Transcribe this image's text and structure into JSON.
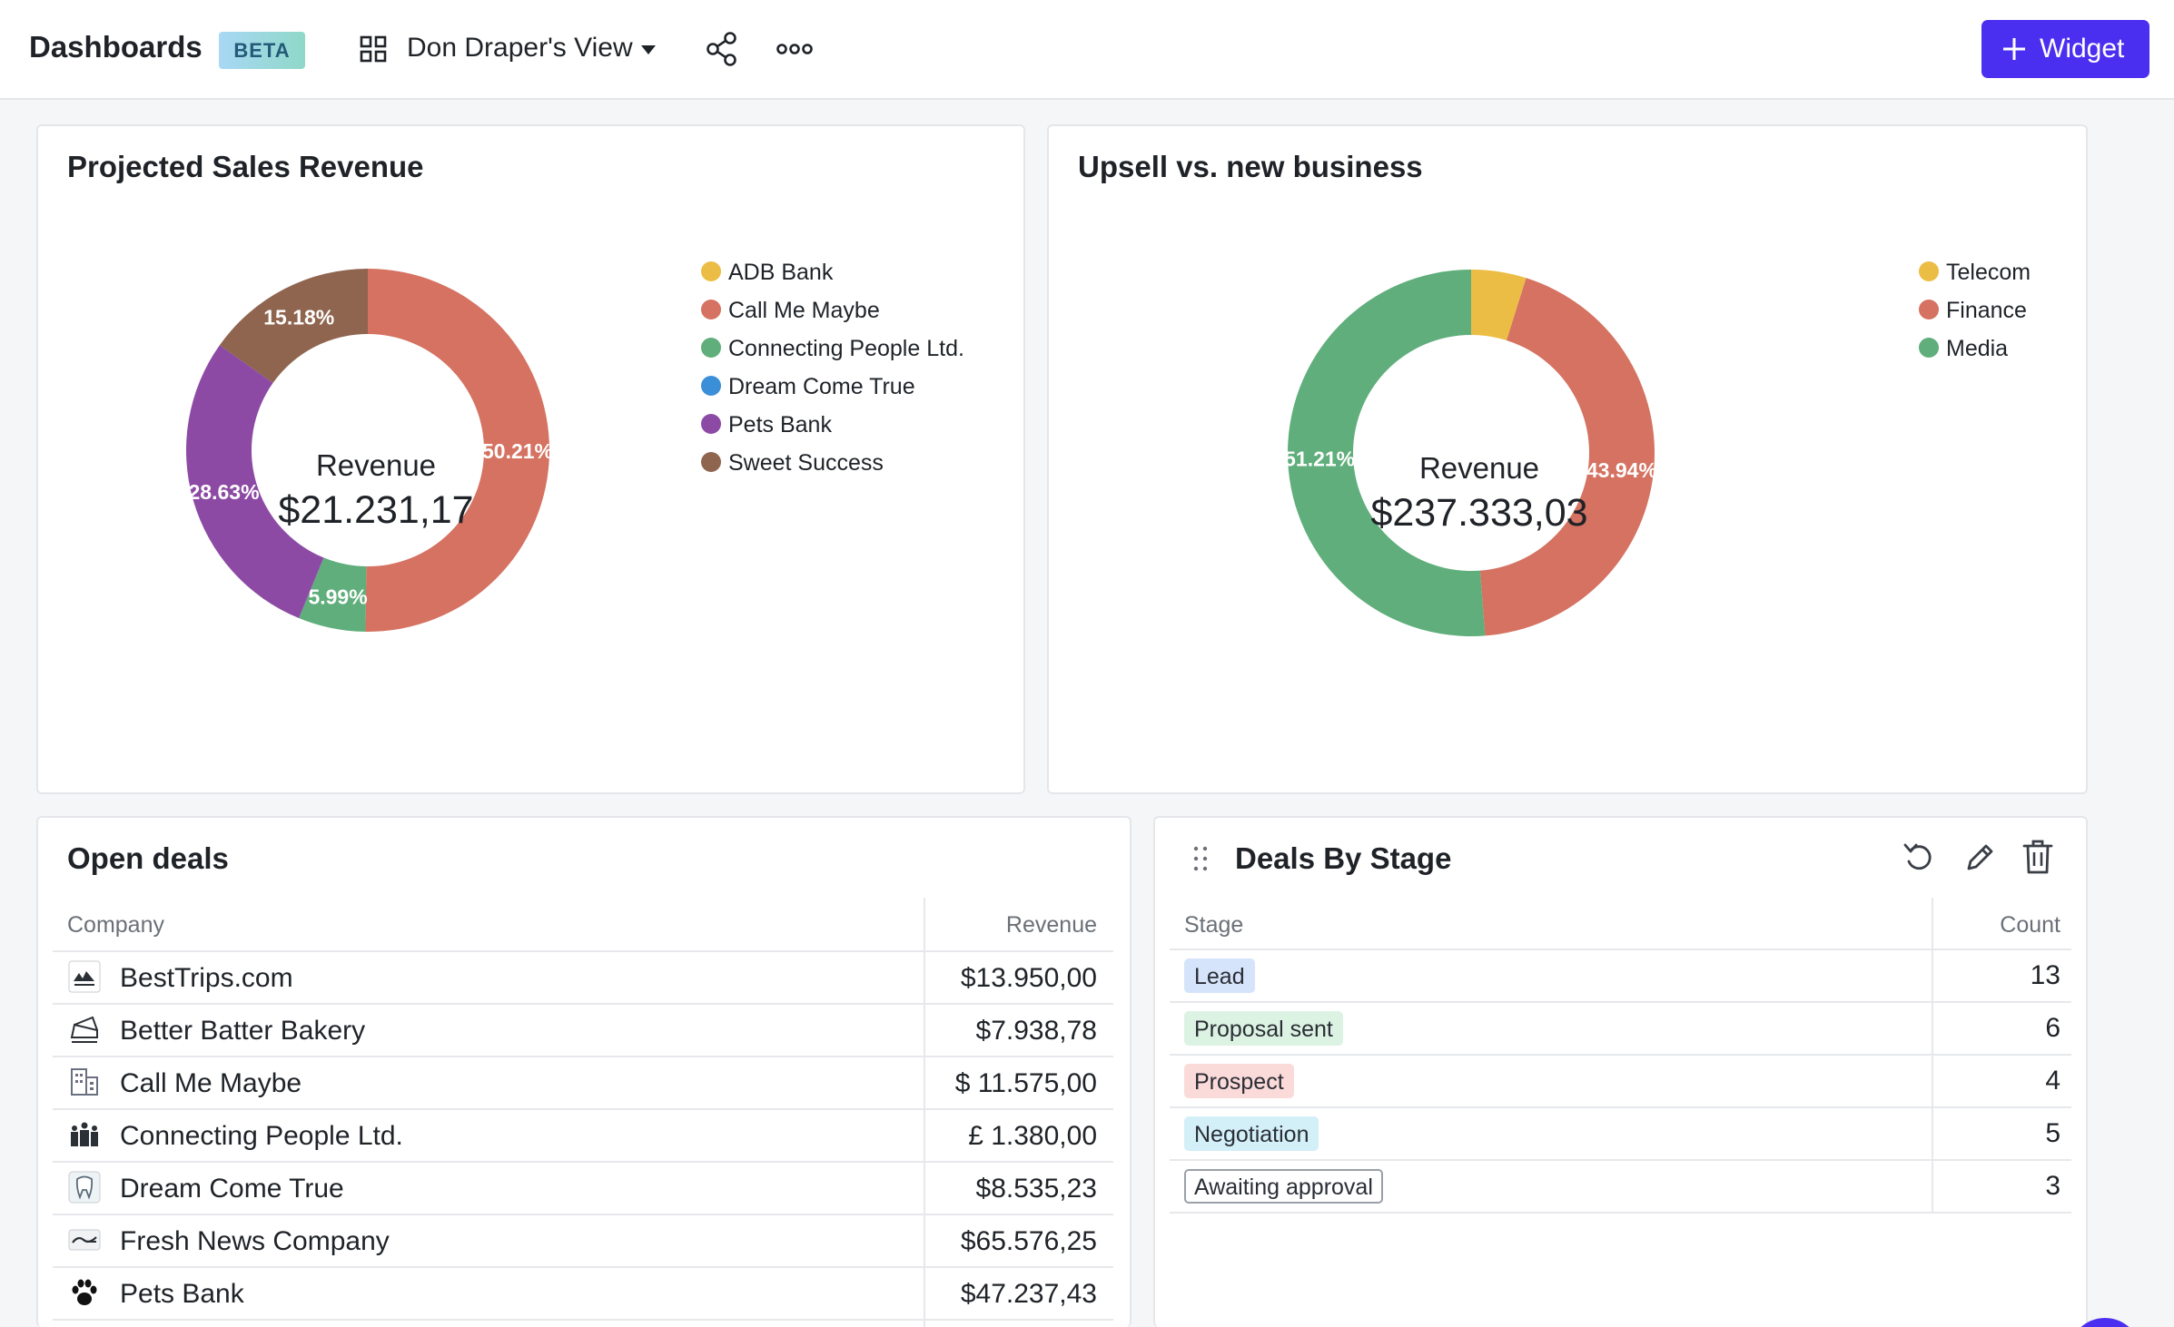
{
  "header": {
    "title": "Dashboards",
    "badge": "BETA",
    "view_name": "Don Draper's View",
    "widget_button": "Widget",
    "accent": "#4b2ff0"
  },
  "cards": {
    "sales": {
      "title": "Projected Sales Revenue",
      "center_key": "Revenue",
      "center_value": "$21.231,17",
      "legend": [
        "ADB Bank",
        "Call Me Maybe",
        "Connecting People Ltd.",
        "Dream Come True",
        "Pets Bank",
        "Sweet Success"
      ]
    },
    "upsell": {
      "title": "Upsell vs. new business",
      "center_key": "Revenue",
      "center_value": "$237.333,03",
      "legend": [
        "Telecom",
        "Finance",
        "Media"
      ]
    },
    "open_deals": {
      "title": "Open deals",
      "col_company": "Company",
      "col_revenue": "Revenue",
      "rows": [
        {
          "company": "BestTrips.com",
          "revenue": "$13.950,00",
          "logo": "travel-logo-icon"
        },
        {
          "company": "Better Batter Bakery",
          "revenue": "$7.938,78",
          "logo": "cake-icon"
        },
        {
          "company": "Call Me Maybe",
          "revenue": "$ 11.575,00",
          "logo": "building-icon"
        },
        {
          "company": "Connecting People Ltd.",
          "revenue": "£ 1.380,00",
          "logo": "people-icon"
        },
        {
          "company": "Dream Come True",
          "revenue": "$8.535,23",
          "logo": "tooth-icon"
        },
        {
          "company": "Fresh News Company",
          "revenue": "$65.576,25",
          "logo": "news-logo-icon"
        },
        {
          "company": "Pets Bank",
          "revenue": "$47.237,43",
          "logo": "paw-icon"
        }
      ]
    },
    "stage": {
      "title": "Deals By Stage",
      "col_stage": "Stage",
      "col_count": "Count",
      "rows": [
        {
          "stage": "Lead",
          "count": "13",
          "bg": "#d6e4fb",
          "border": "#d6e4fb"
        },
        {
          "stage": "Proposal sent",
          "count": "6",
          "bg": "#dcf3e3",
          "border": "#dcf3e3"
        },
        {
          "stage": "Prospect",
          "count": "4",
          "bg": "#fbdada",
          "border": "#fbdada"
        },
        {
          "stage": "Negotiation",
          "count": "5",
          "bg": "#d3eff8",
          "border": "#d3eff8"
        },
        {
          "stage": "Awaiting approval",
          "count": "3",
          "bg": "#ffffff",
          "border": "#9aa0a8"
        }
      ]
    }
  },
  "chart_data": [
    {
      "type": "pie",
      "title": "Projected Sales Revenue",
      "categories": [
        "ADB Bank",
        "Call Me Maybe",
        "Connecting People Ltd.",
        "Dream Come True",
        "Pets Bank",
        "Sweet Success"
      ],
      "values": [
        0,
        50.21,
        5.99,
        0,
        28.63,
        15.18
      ],
      "labels": [
        "",
        "50.21%",
        "5.99%",
        "",
        "28.63%",
        "15.18%"
      ],
      "colors": [
        "#ecbd45",
        "#d57261",
        "#5fae7b",
        "#3b8fd8",
        "#8c4aa4",
        "#8f654f"
      ],
      "legend": "right"
    },
    {
      "type": "pie",
      "title": "Upsell vs. new business",
      "categories": [
        "Telecom",
        "Finance",
        "Media"
      ],
      "values": [
        4.85,
        43.94,
        51.21
      ],
      "labels": [
        "",
        "43.94%",
        "51.21%"
      ],
      "colors": [
        "#ecbd45",
        "#d57261",
        "#5fae7b"
      ],
      "legend": "right"
    }
  ]
}
